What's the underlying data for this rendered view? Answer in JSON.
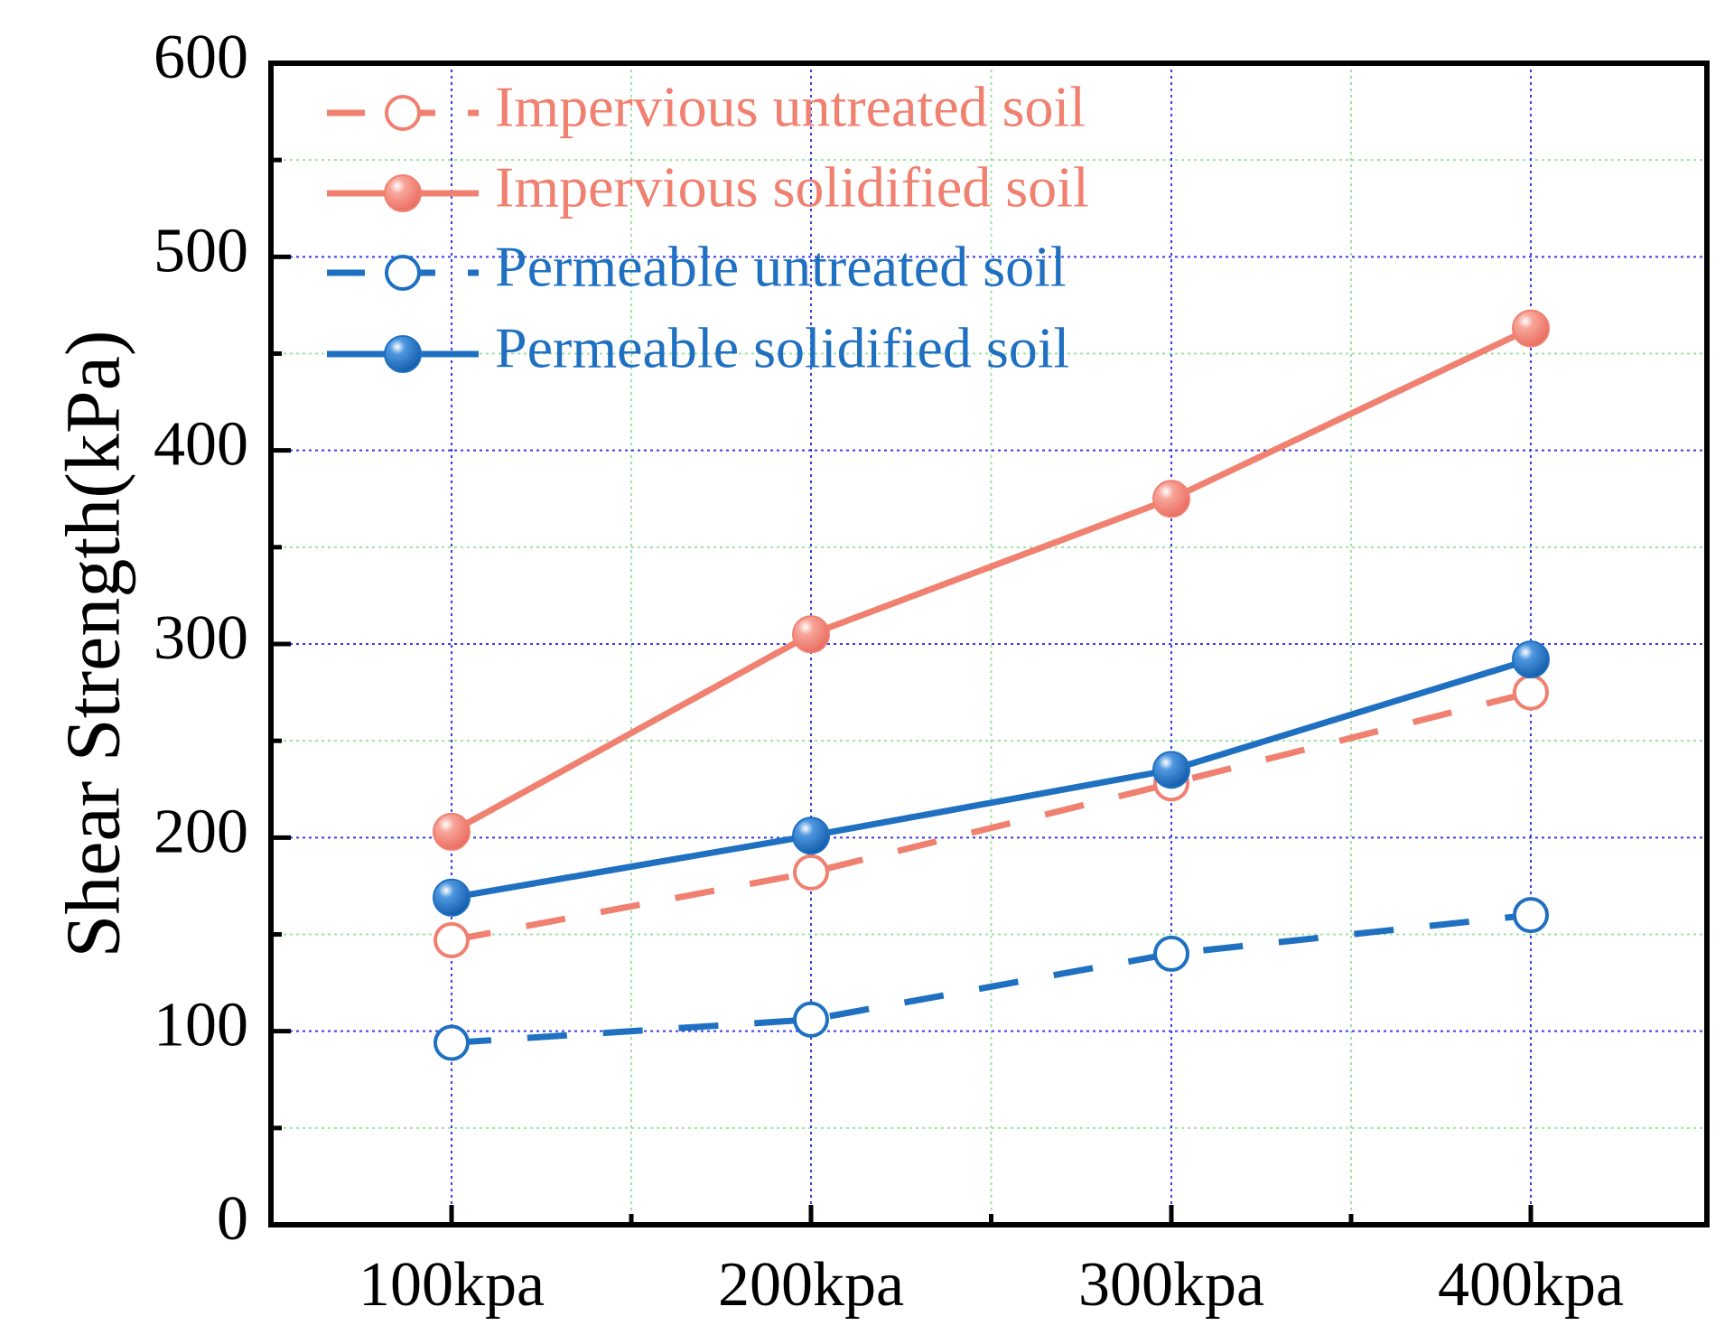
{
  "chart_data": {
    "type": "line",
    "title": "",
    "xlabel": "",
    "ylabel": "Shear Strength(kPa)",
    "categories": [
      "100kpa",
      "200kpa",
      "300kpa",
      "400kpa"
    ],
    "ylim": [
      0,
      600
    ],
    "yticks": [
      0,
      100,
      200,
      300,
      400,
      500,
      600
    ],
    "grid": true,
    "legend_position": "top-left",
    "series": [
      {
        "name": "Impervious untreated soil",
        "values": [
          147,
          182,
          228,
          275
        ],
        "color": "#F08070",
        "line_style": "dashed",
        "marker": "open-circle"
      },
      {
        "name": "Impervious solidified soil",
        "values": [
          203,
          305,
          375,
          463
        ],
        "color": "#F08070",
        "line_style": "solid",
        "marker": "filled-circle"
      },
      {
        "name": "Permeable untreated soil",
        "values": [
          94,
          106,
          140,
          160
        ],
        "color": "#1F70C1",
        "line_style": "dashed",
        "marker": "open-circle"
      },
      {
        "name": "Permeable solidified soil",
        "values": [
          169,
          201,
          235,
          292
        ],
        "color": "#1F70C1",
        "line_style": "solid",
        "marker": "filled-circle"
      }
    ]
  }
}
